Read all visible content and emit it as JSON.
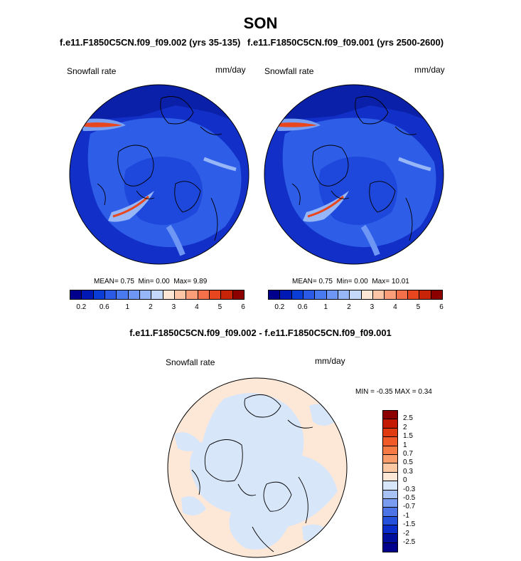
{
  "season": "SON",
  "left_case_title": "f.e11.F1850C5CN.f09_f09.002 (yrs 35-135)",
  "right_case_title": "f.e11.F1850C5CN.f09_f09.001 (yrs 2500-2600)",
  "variable_label": "Snowfall rate",
  "units": "mm/day",
  "left_stats": {
    "mean_label": "MEAN=",
    "mean": "0.75",
    "min_label": "Min=",
    "min": "0.00",
    "max_label": "Max=",
    "max": "9.89"
  },
  "right_stats": {
    "mean_label": "MEAN=",
    "mean": "0.75",
    "min_label": "Min=",
    "min": "0.00",
    "max_label": "Max=",
    "max": "10.01"
  },
  "top_colorbar": {
    "colors": [
      "#00008c",
      "#0018b4",
      "#0a3cd6",
      "#2a5ae6",
      "#4a7af0",
      "#6e96f4",
      "#96b6f8",
      "#c4d8fb",
      "#fde6d4",
      "#fcc6a6",
      "#fa9e7a",
      "#f4704a",
      "#e8461e",
      "#c82408",
      "#8c0000"
    ],
    "ticks": [
      "0.2",
      "0.6",
      "1",
      "2",
      "3",
      "4",
      "5",
      "6"
    ]
  },
  "diff_title": "f.e11.F1850C5CN.f09_f09.002 - f.e11.F1850C5CN.f09_f09.001",
  "diff_variable_label": "Snowfall rate",
  "diff_units": "mm/day",
  "diff_stats": {
    "min_label": "MIN =",
    "min": "-0.35",
    "max_label": "MAX =",
    "max": "0.34"
  },
  "diff_colorbar": {
    "colors": [
      "#8c0000",
      "#c41a04",
      "#e03a10",
      "#f05a28",
      "#f67a44",
      "#f99c6c",
      "#fcc8a4",
      "#fde8d8",
      "#d8e6fa",
      "#a8c2f6",
      "#7a9cf0",
      "#4c74e6",
      "#2450dc",
      "#0a2cc8",
      "#000e9c",
      "#00008c"
    ],
    "ticks": [
      "2.5",
      "2",
      "1.5",
      "1",
      "0.7",
      "0.5",
      "0.3",
      "0",
      "-0.3",
      "-0.5",
      "-0.7",
      "-1",
      "-1.5",
      "-2",
      "-2.5"
    ]
  }
}
